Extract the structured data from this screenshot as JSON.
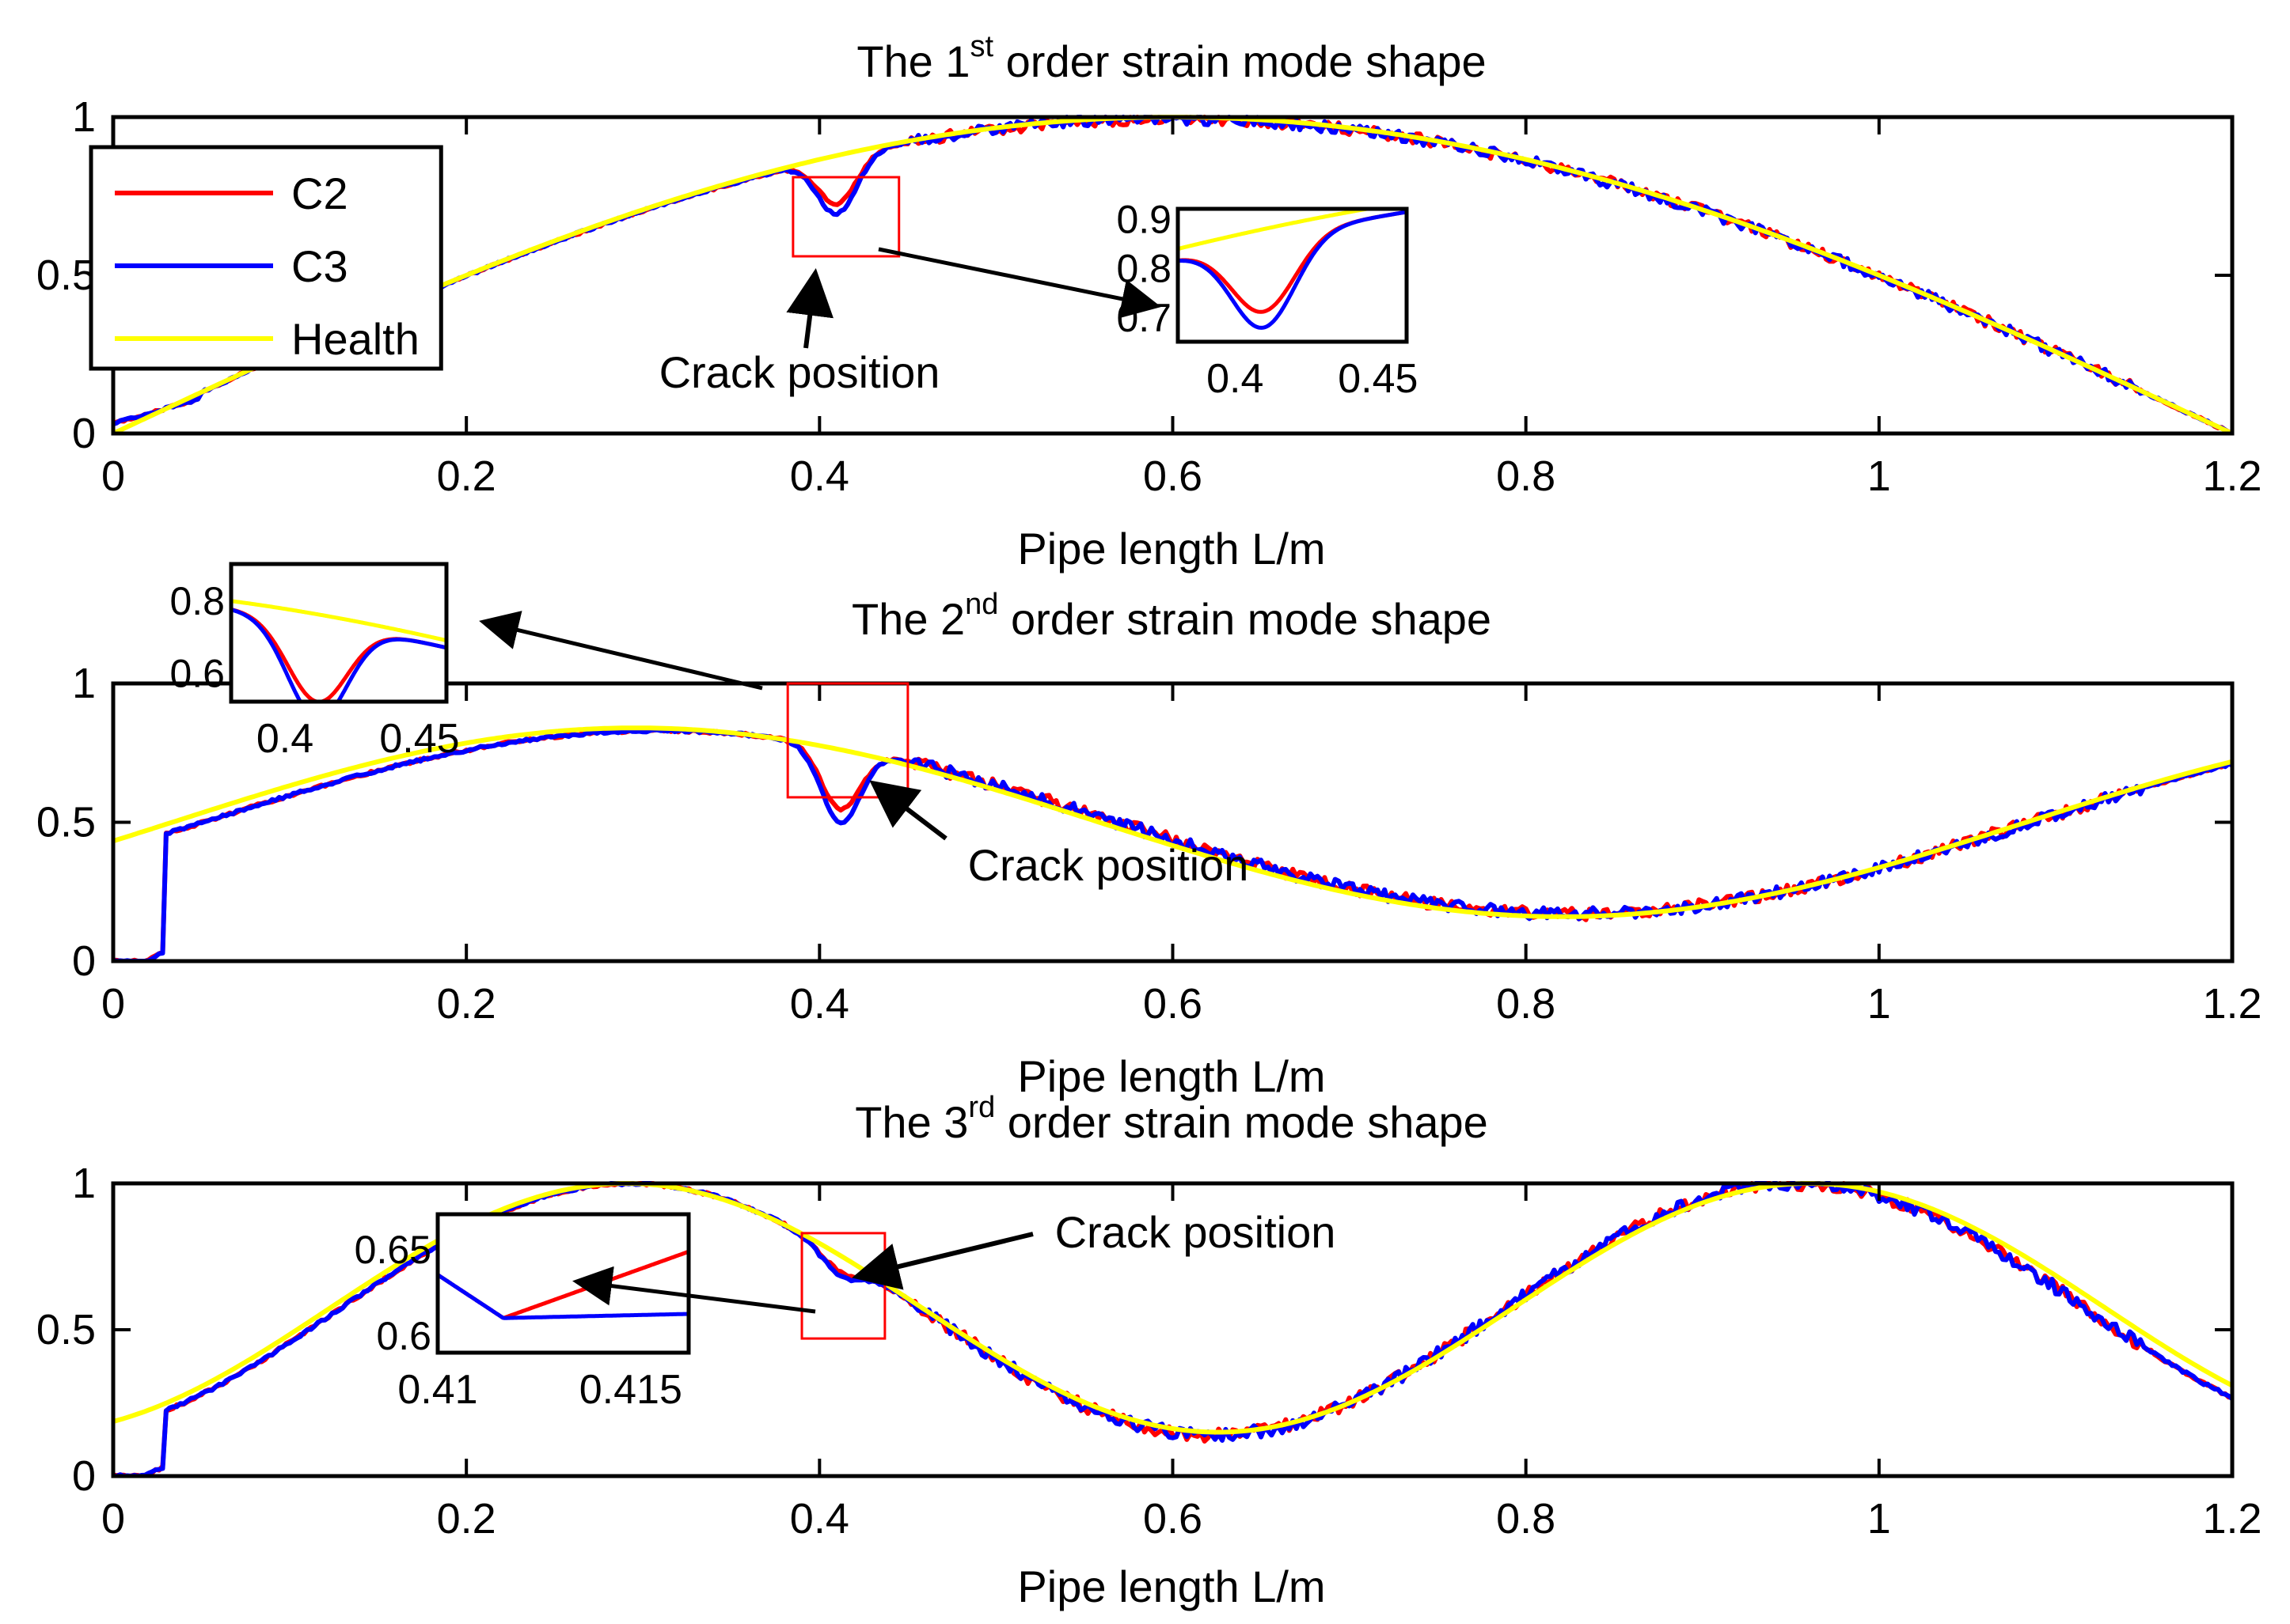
{
  "colors": {
    "C2": "#ff0000",
    "C3": "#0000ff",
    "Health": "#ffff00",
    "box": "#ff0000",
    "axis": "#000000"
  },
  "annotation_label": "Crack position",
  "chart_data": [
    {
      "type": "line",
      "title_parts": [
        "The 1",
        "st",
        " order strain mode shape"
      ],
      "xlabel": "Pipe length L/m",
      "ylabel": "",
      "xlim": [
        0,
        1.2
      ],
      "ylim": [
        0,
        1
      ],
      "xticks": [
        0,
        0.2,
        0.4,
        0.6,
        0.8,
        1,
        1.2
      ],
      "xtick_labels": [
        "0",
        "0.2",
        "0.4",
        "0.6",
        "0.8",
        "1",
        "1.2"
      ],
      "yticks": [
        0,
        0.5,
        1
      ],
      "ytick_labels": [
        "0",
        "0.5",
        "1"
      ],
      "legend": {
        "position": "top-left",
        "entries": [
          "C2",
          "C3",
          "Health"
        ]
      },
      "mode": 1,
      "crack": {
        "x": 0.41,
        "depth": 0.18
      },
      "series": [
        {
          "name": "C2",
          "color": "#ff0000"
        },
        {
          "name": "C3",
          "color": "#0000ff"
        },
        {
          "name": "Health",
          "color": "#ffff00"
        }
      ],
      "highlight_box": {
        "x": [
          0.385,
          0.445
        ],
        "y": [
          0.56,
          0.81
        ]
      },
      "inset": {
        "xlim": [
          0.38,
          0.46
        ],
        "ylim": [
          0.65,
          0.92
        ],
        "xticks": [
          0.4,
          0.45
        ],
        "xtick_labels": [
          "0.4",
          "0.45"
        ],
        "yticks": [
          0.7,
          0.8,
          0.9
        ],
        "ytick_labels": [
          "0.7",
          "0.8",
          "0.9"
        ]
      }
    },
    {
      "type": "line",
      "title_parts": [
        "The 2",
        "nd",
        " order strain mode shape"
      ],
      "xlabel": "Pipe length L/m",
      "ylabel": "",
      "xlim": [
        0,
        1.2
      ],
      "ylim": [
        0,
        1
      ],
      "xticks": [
        0,
        0.2,
        0.4,
        0.6,
        0.8,
        1,
        1.2
      ],
      "xtick_labels": [
        "0",
        "0.2",
        "0.4",
        "0.6",
        "0.8",
        "1",
        "1.2"
      ],
      "yticks": [
        0,
        0.5,
        1
      ],
      "ytick_labels": [
        "0",
        "0.5",
        "1"
      ],
      "mode": 2,
      "crack": {
        "x": 0.412,
        "depth": 0.27
      },
      "series": [
        {
          "name": "C2",
          "color": "#ff0000"
        },
        {
          "name": "C3",
          "color": "#0000ff"
        },
        {
          "name": "Health",
          "color": "#ffff00"
        }
      ],
      "highlight_box": {
        "x": [
          0.382,
          0.45
        ],
        "y": [
          0.59,
          1.0
        ]
      },
      "inset": {
        "xlim": [
          0.38,
          0.46
        ],
        "ylim": [
          0.52,
          0.9
        ],
        "xticks": [
          0.4,
          0.45
        ],
        "xtick_labels": [
          "0.4",
          "0.45"
        ],
        "yticks": [
          0.6,
          0.8
        ],
        "ytick_labels": [
          "0.6",
          "0.8"
        ]
      }
    },
    {
      "type": "line",
      "title_parts": [
        "The 3",
        "rd",
        " order strain mode shape"
      ],
      "xlabel": "Pipe length L/m",
      "ylabel": "",
      "xlim": [
        0,
        1.2
      ],
      "ylim": [
        0,
        1
      ],
      "xticks": [
        0,
        0.2,
        0.4,
        0.6,
        0.8,
        1,
        1.2
      ],
      "xtick_labels": [
        "0",
        "0.2",
        "0.4",
        "0.6",
        "0.8",
        "1",
        "1.2"
      ],
      "yticks": [
        0,
        0.5,
        1
      ],
      "ytick_labels": [
        "0",
        "0.5",
        "1"
      ],
      "mode": 3,
      "crack": {
        "x": 0.412,
        "depth": 0.07
      },
      "series": [
        {
          "name": "C2",
          "color": "#ff0000"
        },
        {
          "name": "C3",
          "color": "#0000ff"
        },
        {
          "name": "Health",
          "color": "#ffff00"
        }
      ],
      "highlight_box": {
        "x": [
          0.39,
          0.437
        ],
        "y": [
          0.47,
          0.83
        ]
      },
      "inset": {
        "xlim": [
          0.41,
          0.4165
        ],
        "ylim": [
          0.59,
          0.67
        ],
        "xticks": [
          0.41,
          0.415
        ],
        "xtick_labels": [
          "0.41",
          "0.415"
        ],
        "yticks": [
          0.6,
          0.65
        ],
        "ytick_labels": [
          "0.6",
          "0.65"
        ]
      }
    }
  ]
}
